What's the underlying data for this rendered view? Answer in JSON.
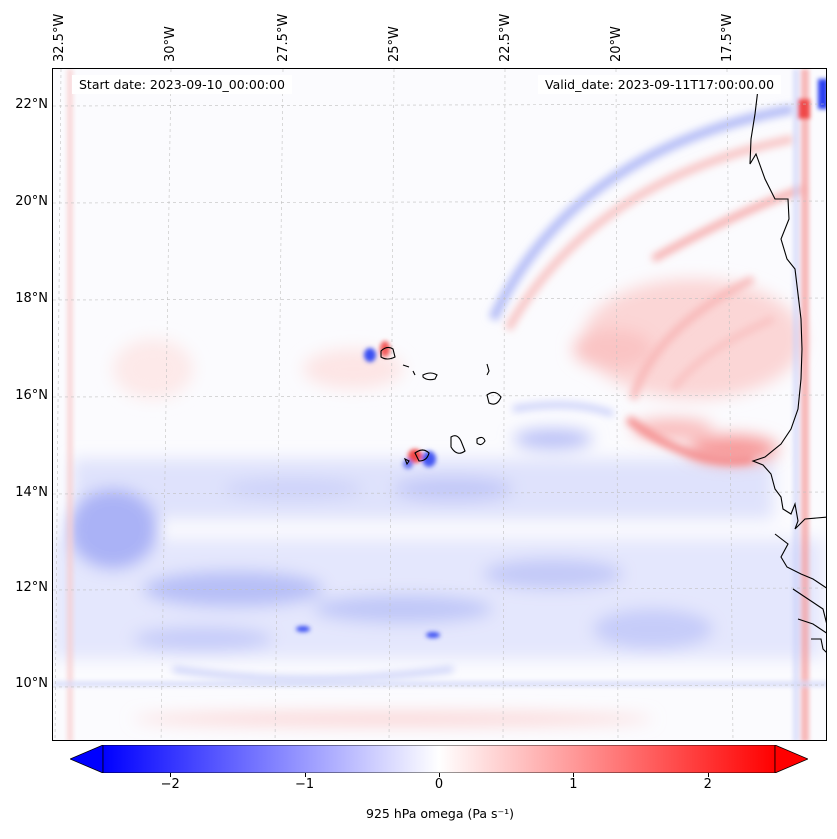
{
  "map": {
    "header": {
      "start_date": "Start date: 2023-09-10_00:00:00",
      "valid_date": "Valid_date: 2023-09-11T17:00:00.00"
    },
    "longitude_labels": [
      "32.5°W",
      "30°W",
      "27.5°W",
      "25°W",
      "22.5°W",
      "20°W",
      "17.5°W"
    ],
    "latitude_labels": [
      "22°N",
      "20°N",
      "18°N",
      "16°N",
      "14°N",
      "12°N",
      "10°N"
    ],
    "gridlines": true,
    "colorbar": {
      "tick_labels": [
        "−2",
        "−1",
        "0",
        "1",
        "2"
      ],
      "tick_values": [
        -2,
        -1,
        0,
        1,
        2
      ],
      "range": [
        -2.5,
        2.5
      ],
      "extend": "both",
      "colormap": "bwr",
      "low_color": "#0000ff",
      "mid_color": "#ffffff",
      "high_color": "#ff0000",
      "label": "925 hPa omega (Pa s⁻¹)"
    },
    "coastline_color": "#000000"
  }
}
